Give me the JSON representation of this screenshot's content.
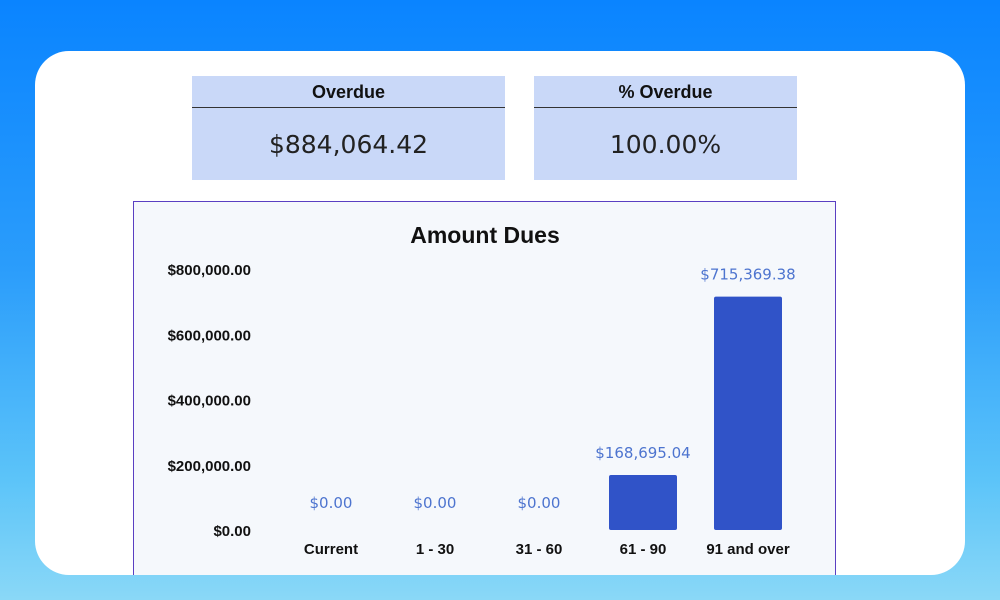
{
  "kpis": [
    {
      "title": "Overdue",
      "value": "$884,064.42"
    },
    {
      "title": "% Overdue",
      "value": "100.00%"
    }
  ],
  "chart_data": {
    "type": "bar",
    "title": "Amount Dues",
    "categories": [
      "Current",
      "1 - 30",
      "31 - 60",
      "61 - 90",
      "91 and over"
    ],
    "values": [
      0,
      0,
      0,
      168695.04,
      715369.38
    ],
    "data_labels": [
      "$0.00",
      "$0.00",
      "$0.00",
      "$168,695.04",
      "$715,369.38"
    ],
    "y_ticks": [
      0,
      200000,
      400000,
      600000,
      800000
    ],
    "y_tick_labels": [
      "$0.00",
      "$200,000.00",
      "$400,000.00",
      "$600,000.00",
      "$800,000.00"
    ],
    "ylim": [
      0,
      800000
    ],
    "grid": false,
    "xlabel": "",
    "ylabel": "",
    "colors": {
      "bar": "#3053c8",
      "data_label": "#4d74cf",
      "axis_text": "#111111"
    }
  }
}
